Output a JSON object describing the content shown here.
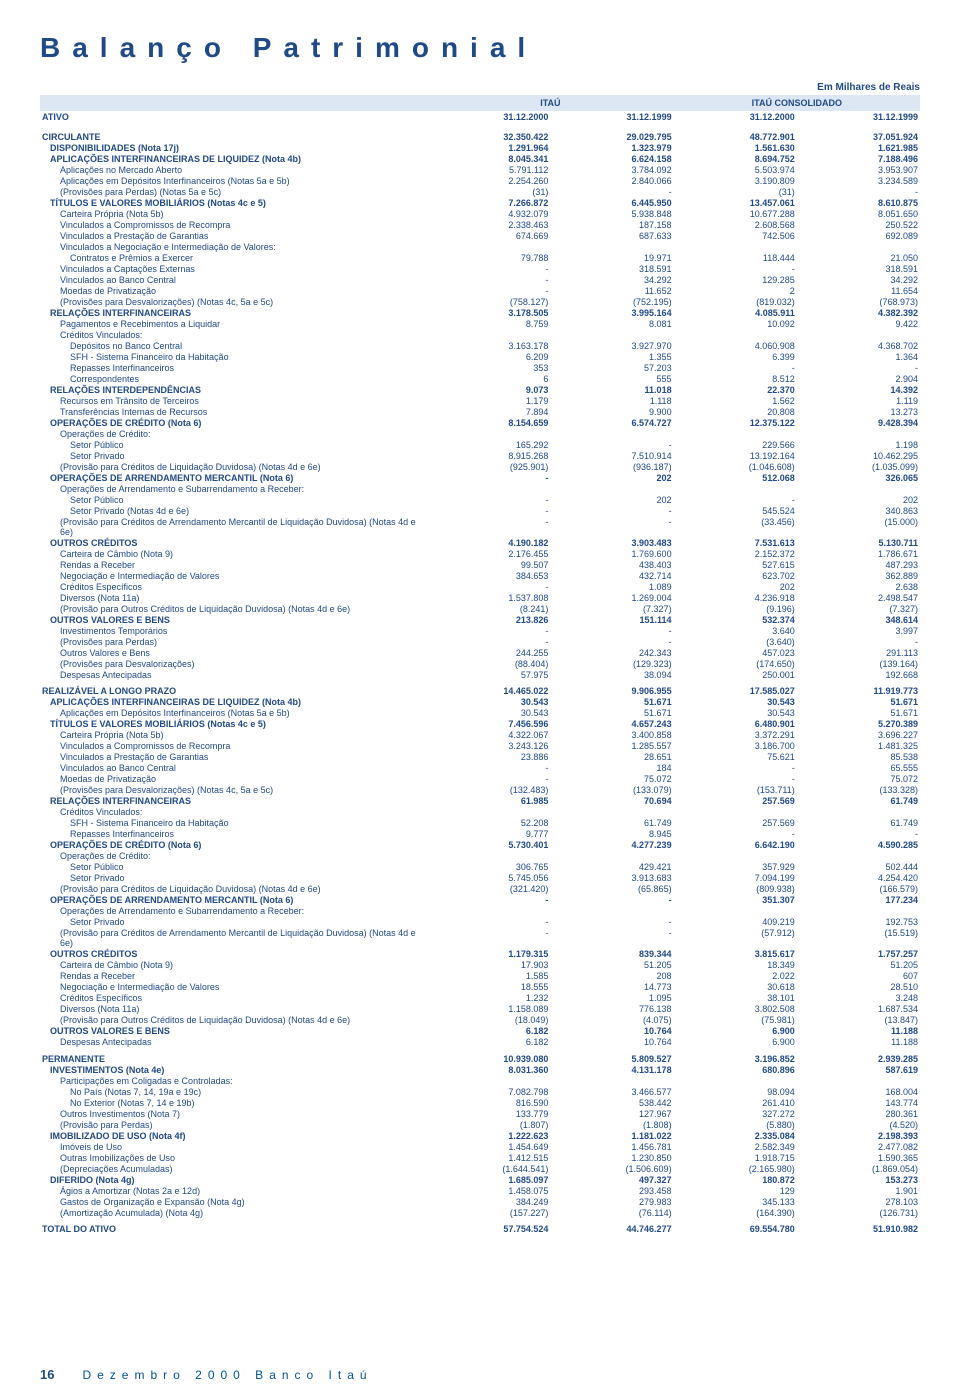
{
  "title": "Balanço   Patrimonial",
  "currency_note": "Em Milhares de Reais",
  "colgroups": [
    "ITAÚ",
    "ITAÚ CONSOLIDADO"
  ],
  "header": {
    "lbl": "ATIVO",
    "c2": "31.12.2000",
    "c3": "31.12.1999",
    "c4": "31.12.2000",
    "c5": "31.12.1999"
  },
  "rows": [
    {
      "lbl": "CIRCULANTE",
      "b": true,
      "sect": true,
      "v": [
        "32.350.422",
        "29.029.795",
        "48.772.901",
        "37.051.924"
      ]
    },
    {
      "lbl": "DISPONIBILIDADES (Nota 17j)",
      "b": true,
      "ind": 1,
      "v": [
        "1.291.964",
        "1.323.979",
        "1.561.630",
        "1.621.985"
      ]
    },
    {
      "lbl": "APLICAÇÕES INTERFINANCEIRAS DE LIQUIDEZ (Nota 4b)",
      "b": true,
      "ind": 1,
      "v": [
        "8.045.341",
        "6.624.158",
        "8.694.752",
        "7.188.496"
      ]
    },
    {
      "lbl": "Aplicações no Mercado Aberto",
      "ind": 2,
      "v": [
        "5.791.112",
        "3.784.092",
        "5.503.974",
        "3.953.907"
      ]
    },
    {
      "lbl": "Aplicações em Depósitos Interfinanceiros (Notas 5a e 5b)",
      "ind": 2,
      "v": [
        "2.254.260",
        "2.840.066",
        "3.190.809",
        "3.234.589"
      ]
    },
    {
      "lbl": "(Provisões para Perdas) (Notas 5a e 5c)",
      "ind": 2,
      "v": [
        "(31)",
        "-",
        "(31)",
        "-"
      ]
    },
    {
      "lbl": "TÍTULOS E VALORES MOBILIÁRIOS (Notas 4c e 5)",
      "b": true,
      "ind": 1,
      "v": [
        "7.266.872",
        "6.445.950",
        "13.457.061",
        "8.610.875"
      ]
    },
    {
      "lbl": "Carteira Própria (Nota 5b)",
      "ind": 2,
      "v": [
        "4.932.079",
        "5.938.848",
        "10.677.288",
        "8.051.650"
      ]
    },
    {
      "lbl": "Vinculados a Compromissos de Recompra",
      "ind": 2,
      "v": [
        "2.338.463",
        "187.158",
        "2.608.568",
        "250.522"
      ]
    },
    {
      "lbl": "Vinculados a Prestação de Garantias",
      "ind": 2,
      "v": [
        "674.669",
        "687.633",
        "742.506",
        "692.089"
      ]
    },
    {
      "lbl": "Vinculados a Negociação e Intermediação de Valores:",
      "ind": 2,
      "v": [
        "",
        "",
        "",
        ""
      ]
    },
    {
      "lbl": "Contratos e Prêmios a Exercer",
      "ind": 3,
      "v": [
        "79.788",
        "19.971",
        "118.444",
        "21.050"
      ]
    },
    {
      "lbl": "Vinculados a Captações Externas",
      "ind": 2,
      "v": [
        "-",
        "318.591",
        "-",
        "318.591"
      ]
    },
    {
      "lbl": "Vinculados ao Banco Central",
      "ind": 2,
      "v": [
        "-",
        "34.292",
        "129.285",
        "34.292"
      ]
    },
    {
      "lbl": "Moedas de Privatização",
      "ind": 2,
      "v": [
        "-",
        "11.652",
        "2",
        "11.654"
      ]
    },
    {
      "lbl": "(Provisões para Desvalorizações) (Notas 4c, 5a e 5c)",
      "ind": 2,
      "v": [
        "(758.127)",
        "(752.195)",
        "(819.032)",
        "(768.973)"
      ]
    },
    {
      "lbl": "RELAÇÕES INTERFINANCEIRAS",
      "b": true,
      "ind": 1,
      "v": [
        "3.178.505",
        "3.995.164",
        "4.085.911",
        "4.382.392"
      ]
    },
    {
      "lbl": "Pagamentos e Recebimentos a Liquidar",
      "ind": 2,
      "v": [
        "8.759",
        "8.081",
        "10.092",
        "9.422"
      ]
    },
    {
      "lbl": "Créditos Vinculados:",
      "ind": 2,
      "v": [
        "",
        "",
        "",
        ""
      ]
    },
    {
      "lbl": "Depósitos no Banco Central",
      "ind": 3,
      "v": [
        "3.163.178",
        "3.927.970",
        "4.060.908",
        "4.368.702"
      ]
    },
    {
      "lbl": "SFH - Sistema Financeiro da Habitação",
      "ind": 3,
      "v": [
        "6.209",
        "1.355",
        "6.399",
        "1.364"
      ]
    },
    {
      "lbl": "Repasses Interfinanceiros",
      "ind": 3,
      "v": [
        "353",
        "57.203",
        "-",
        "-"
      ]
    },
    {
      "lbl": "Correspondentes",
      "ind": 3,
      "v": [
        "6",
        "555",
        "8.512",
        "2.904"
      ]
    },
    {
      "lbl": "RELAÇÕES INTERDEPENDÊNCIAS",
      "b": true,
      "ind": 1,
      "v": [
        "9.073",
        "11.018",
        "22.370",
        "14.392"
      ]
    },
    {
      "lbl": "Recursos em Trânsito de Terceiros",
      "ind": 2,
      "v": [
        "1.179",
        "1.118",
        "1.562",
        "1.119"
      ]
    },
    {
      "lbl": "Transferências Internas de Recursos",
      "ind": 2,
      "v": [
        "7.894",
        "9.900",
        "20.808",
        "13.273"
      ]
    },
    {
      "lbl": "OPERAÇÕES DE CRÉDITO (Nota 6)",
      "b": true,
      "ind": 1,
      "v": [
        "8.154.659",
        "6.574.727",
        "12.375.122",
        "9.428.394"
      ]
    },
    {
      "lbl": "Operações de Crédito:",
      "ind": 2,
      "v": [
        "",
        "",
        "",
        ""
      ]
    },
    {
      "lbl": "Setor Público",
      "ind": 3,
      "v": [
        "165.292",
        "-",
        "229.566",
        "1.198"
      ]
    },
    {
      "lbl": "Setor Privado",
      "ind": 3,
      "v": [
        "8.915.268",
        "7.510.914",
        "13.192.164",
        "10.462.295"
      ]
    },
    {
      "lbl": "(Provisão para Créditos de Liquidação Duvidosa) (Notas 4d e 6e)",
      "ind": 2,
      "v": [
        "(925.901)",
        "(936.187)",
        "(1.046.608)",
        "(1.035.099)"
      ]
    },
    {
      "lbl": "OPERAÇÕES DE ARRENDAMENTO MERCANTIL (Nota 6)",
      "b": true,
      "ind": 1,
      "v": [
        "-",
        "202",
        "512.068",
        "326.065"
      ]
    },
    {
      "lbl": "Operações de Arrendamento e Subarrendamento a Receber:",
      "ind": 2,
      "v": [
        "",
        "",
        "",
        ""
      ]
    },
    {
      "lbl": "Setor Público",
      "ind": 3,
      "v": [
        "-",
        "202",
        "-",
        "202"
      ]
    },
    {
      "lbl": "Setor Privado (Notas 4d e 6e)",
      "ind": 3,
      "v": [
        "-",
        "-",
        "545.524",
        "340.863"
      ]
    },
    {
      "lbl": "(Provisão para Créditos de Arrendamento Mercantil de Liquidação Duvidosa) (Notas 4d e 6e)",
      "ind": 2,
      "v": [
        "-",
        "-",
        "(33.456)",
        "(15.000)"
      ]
    },
    {
      "lbl": "OUTROS CRÉDITOS",
      "b": true,
      "ind": 1,
      "v": [
        "4.190.182",
        "3.903.483",
        "7.531.613",
        "5.130.711"
      ]
    },
    {
      "lbl": "Carteira de Câmbio (Nota 9)",
      "ind": 2,
      "v": [
        "2.176.455",
        "1.769.600",
        "2.152.372",
        "1.786.671"
      ]
    },
    {
      "lbl": "Rendas a Receber",
      "ind": 2,
      "v": [
        "99.507",
        "438.403",
        "527.615",
        "487.293"
      ]
    },
    {
      "lbl": "Negociação e Intermediação de Valores",
      "ind": 2,
      "v": [
        "384.653",
        "432.714",
        "623.702",
        "362.889"
      ]
    },
    {
      "lbl": "Créditos Específicos",
      "ind": 2,
      "v": [
        "-",
        "1.089",
        "202",
        "2.638"
      ]
    },
    {
      "lbl": "Diversos (Nota 11a)",
      "ind": 2,
      "v": [
        "1.537.808",
        "1.269.004",
        "4.236.918",
        "2.498.547"
      ]
    },
    {
      "lbl": "(Provisão para Outros Créditos de Liquidação Duvidosa) (Notas 4d e 6e)",
      "ind": 2,
      "v": [
        "(8.241)",
        "(7.327)",
        "(9.196)",
        "(7.327)"
      ]
    },
    {
      "lbl": "OUTROS VALORES E BENS",
      "b": true,
      "ind": 1,
      "v": [
        "213.826",
        "151.114",
        "532.374",
        "348.614"
      ]
    },
    {
      "lbl": "Investimentos Temporários",
      "ind": 2,
      "v": [
        "-",
        "-",
        "3.640",
        "3.997"
      ]
    },
    {
      "lbl": "(Provisões para Perdas)",
      "ind": 2,
      "v": [
        "-",
        "-",
        "(3.640)",
        "-"
      ]
    },
    {
      "lbl": "Outros Valores e Bens",
      "ind": 2,
      "v": [
        "244.255",
        "242.343",
        "457.023",
        "291.113"
      ]
    },
    {
      "lbl": "(Provisões para Desvalorizações)",
      "ind": 2,
      "v": [
        "(88.404)",
        "(129.323)",
        "(174.650)",
        "(139.164)"
      ]
    },
    {
      "lbl": "Despesas Antecipadas",
      "ind": 2,
      "v": [
        "57.975",
        "38.094",
        "250.001",
        "192.668"
      ]
    },
    {
      "lbl": "REALIZÁVEL A LONGO PRAZO",
      "b": true,
      "sect": true,
      "v": [
        "14.465.022",
        "9.906.955",
        "17.585.027",
        "11.919.773"
      ]
    },
    {
      "lbl": "APLICAÇÕES INTERFINANCEIRAS DE LIQUIDEZ (Nota 4b)",
      "b": true,
      "ind": 1,
      "v": [
        "30.543",
        "51.671",
        "30.543",
        "51.671"
      ]
    },
    {
      "lbl": "Aplicações em Depósitos Interfinanceiros (Notas 5a e 5b)",
      "ind": 2,
      "v": [
        "30.543",
        "51.671",
        "30.543",
        "51.671"
      ]
    },
    {
      "lbl": "TÍTULOS E VALORES MOBILIÁRIOS (Notas 4c e 5)",
      "b": true,
      "ind": 1,
      "v": [
        "7.456.596",
        "4.657.243",
        "6.480.901",
        "5.270.389"
      ]
    },
    {
      "lbl": "Carteira Própria (Nota 5b)",
      "ind": 2,
      "v": [
        "4.322.067",
        "3.400.858",
        "3.372.291",
        "3.696.227"
      ]
    },
    {
      "lbl": "Vinculados a Compromissos de Recompra",
      "ind": 2,
      "v": [
        "3.243.126",
        "1.285.557",
        "3.186.700",
        "1.481.325"
      ]
    },
    {
      "lbl": "Vinculados a Prestação de Garantias",
      "ind": 2,
      "v": [
        "23.886",
        "28.651",
        "75.621",
        "85.538"
      ]
    },
    {
      "lbl": "Vinculados ao Banco Central",
      "ind": 2,
      "v": [
        "-",
        "184",
        "-",
        "65.555"
      ]
    },
    {
      "lbl": "Moedas de Privatização",
      "ind": 2,
      "v": [
        "-",
        "75.072",
        "-",
        "75.072"
      ]
    },
    {
      "lbl": "(Provisões para Desvalorizações) (Notas 4c, 5a e 5c)",
      "ind": 2,
      "v": [
        "(132.483)",
        "(133.079)",
        "(153.711)",
        "(133.328)"
      ]
    },
    {
      "lbl": "RELAÇÕES INTERFINANCEIRAS",
      "b": true,
      "ind": 1,
      "v": [
        "61.985",
        "70.694",
        "257.569",
        "61.749"
      ]
    },
    {
      "lbl": "Créditos Vinculados:",
      "ind": 2,
      "v": [
        "",
        "",
        "",
        ""
      ]
    },
    {
      "lbl": "SFH - Sistema Financeiro da Habitação",
      "ind": 3,
      "v": [
        "52.208",
        "61.749",
        "257.569",
        "61.749"
      ]
    },
    {
      "lbl": "Repasses Interfinanceiros",
      "ind": 3,
      "v": [
        "9.777",
        "8.945",
        "-",
        "-"
      ]
    },
    {
      "lbl": "OPERAÇÕES DE CRÉDITO (Nota 6)",
      "b": true,
      "ind": 1,
      "v": [
        "5.730.401",
        "4.277.239",
        "6.642.190",
        "4.590.285"
      ]
    },
    {
      "lbl": "Operações de Crédito:",
      "ind": 2,
      "v": [
        "",
        "",
        "",
        ""
      ]
    },
    {
      "lbl": "Setor Público",
      "ind": 3,
      "v": [
        "306.765",
        "429.421",
        "357.929",
        "502.444"
      ]
    },
    {
      "lbl": "Setor Privado",
      "ind": 3,
      "v": [
        "5.745.056",
        "3.913.683",
        "7.094.199",
        "4.254.420"
      ]
    },
    {
      "lbl": "(Provisão para Créditos de Liquidação Duvidosa)  (Notas 4d e  6e)",
      "ind": 2,
      "v": [
        "(321.420)",
        "(65.865)",
        "(809.938)",
        "(166.579)"
      ]
    },
    {
      "lbl": "OPERAÇÕES DE ARRENDAMENTO MERCANTIL  (Nota 6)",
      "b": true,
      "ind": 1,
      "v": [
        "-",
        "-",
        "351.307",
        "177.234"
      ]
    },
    {
      "lbl": "Operações de Arrendamento e Subarrendamento a Receber:",
      "ind": 2,
      "v": [
        "",
        "",
        "",
        ""
      ]
    },
    {
      "lbl": "Setor Privado",
      "ind": 3,
      "v": [
        "-",
        "-",
        "409.219",
        "192.753"
      ]
    },
    {
      "lbl": "(Provisão para Créditos de Arrendamento Mercantil de Liquidação Duvidosa)  (Notas 4d e 6e)",
      "ind": 2,
      "v": [
        "-",
        "-",
        "(57.912)",
        "(15.519)"
      ]
    },
    {
      "lbl": "OUTROS CRÉDITOS",
      "b": true,
      "ind": 1,
      "v": [
        "1.179.315",
        "839.344",
        "3.815.617",
        "1.757.257"
      ]
    },
    {
      "lbl": "Carteira de Câmbio  (Nota 9)",
      "ind": 2,
      "v": [
        "17.903",
        "51.205",
        "18.349",
        "51.205"
      ]
    },
    {
      "lbl": "Rendas a Receber",
      "ind": 2,
      "v": [
        "1.585",
        "208",
        "2.022",
        "607"
      ]
    },
    {
      "lbl": "Negociação e Intermediação de Valores",
      "ind": 2,
      "v": [
        "18.555",
        "14.773",
        "30.618",
        "28.510"
      ]
    },
    {
      "lbl": "Créditos Específicos",
      "ind": 2,
      "v": [
        "1.232",
        "1.095",
        "38.101",
        "3.248"
      ]
    },
    {
      "lbl": "Diversos  (Nota 11a)",
      "ind": 2,
      "v": [
        "1.158.089",
        "776.138",
        "3.802.508",
        "1.687.534"
      ]
    },
    {
      "lbl": "(Provisão para Outros Créditos de Liquidação Duvidosa)  (Notas 4d e 6e)",
      "ind": 2,
      "v": [
        "(18.049)",
        "(4.075)",
        "(75.981)",
        "(13.847)"
      ]
    },
    {
      "lbl": "OUTROS VALORES E BENS",
      "b": true,
      "ind": 1,
      "v": [
        "6.182",
        "10.764",
        "6.900",
        "11.188"
      ]
    },
    {
      "lbl": "Despesas Antecipadas",
      "ind": 2,
      "v": [
        "6.182",
        "10.764",
        "6.900",
        "11.188"
      ]
    },
    {
      "lbl": "PERMANENTE",
      "b": true,
      "sect": true,
      "v": [
        "10.939.080",
        "5.809.527",
        "3.196.852",
        "2.939.285"
      ]
    },
    {
      "lbl": "INVESTIMENTOS  (Nota 4e)",
      "b": true,
      "ind": 1,
      "v": [
        "8.031.360",
        "4.131.178",
        "680.896",
        "587.619"
      ]
    },
    {
      "lbl": "Participações em Coligadas e Controladas:",
      "ind": 2,
      "v": [
        "",
        "",
        "",
        ""
      ]
    },
    {
      "lbl": "No País (Notas 7, 14, 19a e 19c)",
      "ind": 3,
      "v": [
        "7.082.798",
        "3.466.577",
        "98.094",
        "168.004"
      ]
    },
    {
      "lbl": "No Exterior (Notas 7, 14 e 19b)",
      "ind": 3,
      "v": [
        "816.590",
        "538.442",
        "261.410",
        "143.774"
      ]
    },
    {
      "lbl": "Outros Investimentos (Nota 7)",
      "ind": 2,
      "v": [
        "133.779",
        "127.967",
        "327.272",
        "280.361"
      ]
    },
    {
      "lbl": "(Provisão para Perdas)",
      "ind": 2,
      "v": [
        "(1.807)",
        "(1.808)",
        "(5.880)",
        "(4.520)"
      ]
    },
    {
      "lbl": "IMOBILIZADO DE USO  (Nota 4f)",
      "b": true,
      "ind": 1,
      "v": [
        "1.222.623",
        "1.181.022",
        "2.335.084",
        "2.198.393"
      ]
    },
    {
      "lbl": "Imóveis de Uso",
      "ind": 2,
      "v": [
        "1.454.649",
        "1.456.781",
        "2.582.349",
        "2.477.082"
      ]
    },
    {
      "lbl": "Outras Imobilizações de Uso",
      "ind": 2,
      "v": [
        "1.412.515",
        "1.230.850",
        "1.918.715",
        "1.590.365"
      ]
    },
    {
      "lbl": "(Depreciações Acumuladas)",
      "ind": 2,
      "v": [
        "(1.644.541)",
        "(1.506.609)",
        "(2.165.980)",
        "(1.869.054)"
      ]
    },
    {
      "lbl": "DIFERIDO (Nota 4g)",
      "b": true,
      "ind": 1,
      "v": [
        "1.685.097",
        "497.327",
        "180.872",
        "153.273"
      ]
    },
    {
      "lbl": "Ágios a Amortizar (Notas 2a e 12d)",
      "ind": 2,
      "v": [
        "1.458.075",
        "293.458",
        "129",
        "1.901"
      ]
    },
    {
      "lbl": "Gastos de Organização e Expansão (Nota 4g)",
      "ind": 2,
      "v": [
        "384.249",
        "279.983",
        "345.133",
        "278.103"
      ]
    },
    {
      "lbl": "(Amortização Acumulada) (Nota 4g)",
      "ind": 2,
      "v": [
        "(157.227)",
        "(76.114)",
        "(164.390)",
        "(126.731)"
      ]
    },
    {
      "lbl": "TOTAL DO ATIVO",
      "b": true,
      "sect": true,
      "v": [
        "57.754.524",
        "44.746.277",
        "69.554.780",
        "51.910.982"
      ]
    }
  ],
  "footer": {
    "page": "16",
    "text": "Dezembro 2000  Banco Itaú"
  }
}
